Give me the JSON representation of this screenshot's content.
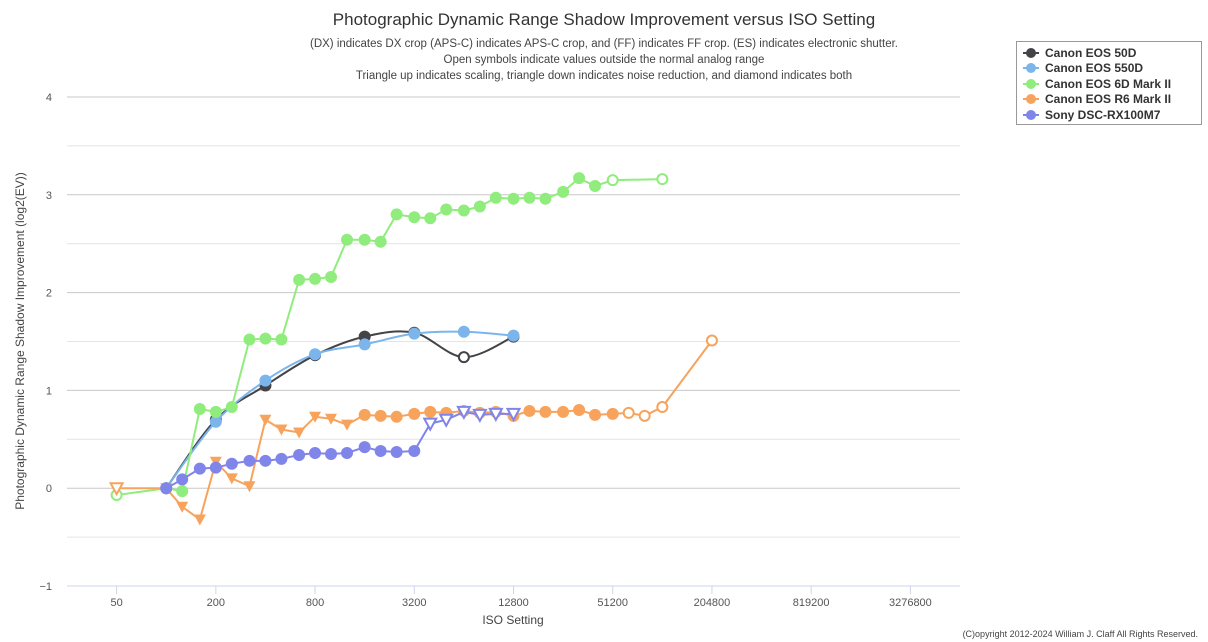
{
  "chart_data": {
    "type": "line",
    "title": "Photographic Dynamic Range Shadow Improvement versus ISO Setting",
    "subtitles": [
      "(DX) indicates DX crop (APS-C) indicates APS-C crop, and (FF) indicates FF crop. (ES) indicates electronic shutter.",
      "Open symbols indicate values outside the normal analog range",
      "Triangle up indicates scaling, triangle down indicates noise reduction, and diamond indicates both"
    ],
    "xlabel": "ISO Setting",
    "ylabel": "Photographic Dynamic Range Shadow Improvement (log2(EV))",
    "xscale": "log2",
    "xlim": [
      25,
      6553600
    ],
    "ylim": [
      -1,
      4
    ],
    "xticks": [
      50,
      200,
      800,
      3200,
      12800,
      51200,
      204800,
      819200,
      3276800
    ],
    "xtick_labels": [
      "50",
      "200",
      "800",
      "3200",
      "12800",
      "51200",
      "204800",
      "819200",
      "3276800"
    ],
    "yticks": [
      -1,
      0,
      1,
      2,
      3,
      4
    ],
    "ytick_labels": [
      "−1",
      "0",
      "1",
      "2",
      "3",
      "4"
    ],
    "grid": true,
    "legend_position": "top-right",
    "marker_key": {
      "c": "filled circle",
      "o": "open circle",
      "v": "filled triangle down",
      "V": "open triangle down"
    },
    "series": [
      {
        "name": "Canon EOS 50D",
        "color": "#434348",
        "smooth": true,
        "points": [
          [
            100,
            0,
            "c"
          ],
          [
            200,
            0.7,
            "c"
          ],
          [
            400,
            1.05,
            "c"
          ],
          [
            800,
            1.36,
            "c"
          ],
          [
            1600,
            1.55,
            "c"
          ],
          [
            3200,
            1.59,
            "c"
          ],
          [
            6400,
            1.34,
            "o"
          ],
          [
            12800,
            1.55,
            "c"
          ]
        ]
      },
      {
        "name": "Canon EOS 550D",
        "color": "#7cb5ec",
        "smooth": true,
        "points": [
          [
            100,
            0,
            "c"
          ],
          [
            200,
            0.68,
            "c"
          ],
          [
            400,
            1.1,
            "c"
          ],
          [
            800,
            1.37,
            "c"
          ],
          [
            1600,
            1.47,
            "c"
          ],
          [
            3200,
            1.58,
            "c"
          ],
          [
            6400,
            1.6,
            "c"
          ],
          [
            12800,
            1.56,
            "c"
          ]
        ]
      },
      {
        "name": "Canon EOS 6D Mark II",
        "color": "#90ed7d",
        "smooth": false,
        "points": [
          [
            50,
            -0.07,
            "o"
          ],
          [
            100,
            0,
            "c"
          ],
          [
            125,
            -0.03,
            "c"
          ],
          [
            160,
            0.81,
            "c"
          ],
          [
            200,
            0.78,
            "c"
          ],
          [
            250,
            0.83,
            "c"
          ],
          [
            320,
            1.52,
            "c"
          ],
          [
            400,
            1.53,
            "c"
          ],
          [
            500,
            1.52,
            "c"
          ],
          [
            640,
            2.13,
            "c"
          ],
          [
            800,
            2.14,
            "c"
          ],
          [
            1000,
            2.16,
            "c"
          ],
          [
            1250,
            2.54,
            "c"
          ],
          [
            1600,
            2.54,
            "c"
          ],
          [
            2000,
            2.52,
            "c"
          ],
          [
            2500,
            2.8,
            "c"
          ],
          [
            3200,
            2.77,
            "c"
          ],
          [
            4000,
            2.76,
            "c"
          ],
          [
            5000,
            2.85,
            "c"
          ],
          [
            6400,
            2.84,
            "c"
          ],
          [
            8000,
            2.88,
            "c"
          ],
          [
            10000,
            2.97,
            "c"
          ],
          [
            12800,
            2.96,
            "c"
          ],
          [
            16000,
            2.97,
            "c"
          ],
          [
            20000,
            2.96,
            "c"
          ],
          [
            25600,
            3.03,
            "c"
          ],
          [
            32000,
            3.17,
            "c"
          ],
          [
            40000,
            3.09,
            "c"
          ],
          [
            51200,
            3.15,
            "o"
          ],
          [
            102400,
            3.16,
            "o"
          ]
        ]
      },
      {
        "name": "Canon EOS R6 Mark II",
        "color": "#f7a35c",
        "smooth": false,
        "points": [
          [
            50,
            0,
            "V"
          ],
          [
            100,
            0,
            "v"
          ],
          [
            125,
            -0.19,
            "v"
          ],
          [
            160,
            -0.32,
            "v"
          ],
          [
            200,
            0.27,
            "v"
          ],
          [
            250,
            0.1,
            "v"
          ],
          [
            320,
            0.02,
            "v"
          ],
          [
            400,
            0.7,
            "v"
          ],
          [
            500,
            0.6,
            "v"
          ],
          [
            640,
            0.57,
            "v"
          ],
          [
            800,
            0.73,
            "v"
          ],
          [
            1000,
            0.71,
            "v"
          ],
          [
            1250,
            0.65,
            "v"
          ],
          [
            1600,
            0.75,
            "c"
          ],
          [
            2000,
            0.74,
            "c"
          ],
          [
            2500,
            0.73,
            "c"
          ],
          [
            3200,
            0.76,
            "c"
          ],
          [
            4000,
            0.78,
            "c"
          ],
          [
            5000,
            0.77,
            "c"
          ],
          [
            6400,
            0.79,
            "c"
          ],
          [
            8000,
            0.77,
            "c"
          ],
          [
            10000,
            0.78,
            "c"
          ],
          [
            12800,
            0.74,
            "c"
          ],
          [
            16000,
            0.79,
            "c"
          ],
          [
            20000,
            0.78,
            "c"
          ],
          [
            25600,
            0.78,
            "c"
          ],
          [
            32000,
            0.8,
            "c"
          ],
          [
            40000,
            0.75,
            "c"
          ],
          [
            51200,
            0.76,
            "c"
          ],
          [
            64000,
            0.77,
            "o"
          ],
          [
            80000,
            0.74,
            "o"
          ],
          [
            102400,
            0.83,
            "o"
          ],
          [
            204800,
            1.51,
            "o"
          ]
        ]
      },
      {
        "name": "Sony DSC-RX100M7",
        "color": "#8085e9",
        "smooth": false,
        "points": [
          [
            100,
            0,
            "c"
          ],
          [
            125,
            0.09,
            "c"
          ],
          [
            160,
            0.2,
            "c"
          ],
          [
            200,
            0.21,
            "c"
          ],
          [
            250,
            0.25,
            "c"
          ],
          [
            320,
            0.28,
            "c"
          ],
          [
            400,
            0.28,
            "c"
          ],
          [
            500,
            0.3,
            "c"
          ],
          [
            640,
            0.34,
            "c"
          ],
          [
            800,
            0.36,
            "c"
          ],
          [
            1000,
            0.35,
            "c"
          ],
          [
            1250,
            0.36,
            "c"
          ],
          [
            1600,
            0.42,
            "c"
          ],
          [
            2000,
            0.38,
            "c"
          ],
          [
            2500,
            0.37,
            "c"
          ],
          [
            3200,
            0.38,
            "c"
          ],
          [
            4000,
            0.66,
            "V"
          ],
          [
            5000,
            0.7,
            "V"
          ],
          [
            6400,
            0.78,
            "V"
          ],
          [
            8000,
            0.75,
            "V"
          ],
          [
            10000,
            0.76,
            "V"
          ],
          [
            12800,
            0.76,
            "V"
          ]
        ]
      }
    ]
  },
  "copyright": "(C)opyright 2012-2024 William J. Claff All Rights Reserved."
}
